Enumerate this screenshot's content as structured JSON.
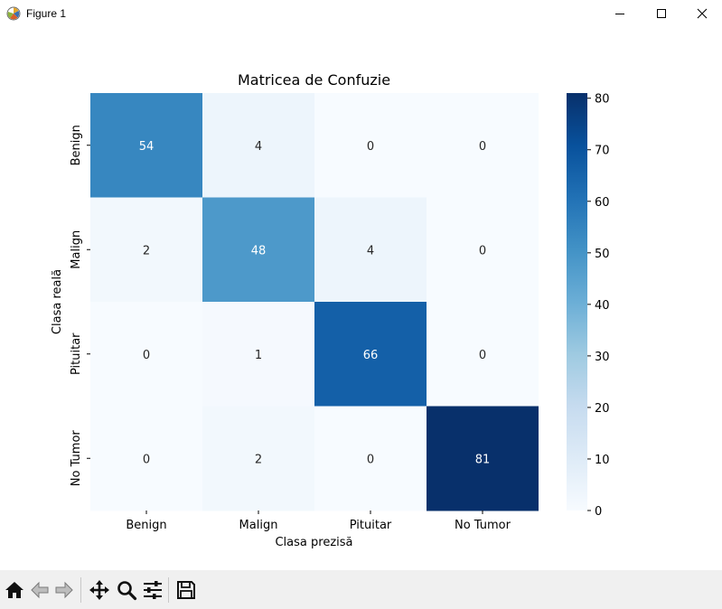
{
  "window": {
    "title": "Figure 1",
    "app_icon": "matplotlib-logo-icon",
    "controls": [
      "minimize-icon",
      "maximize-icon",
      "close-icon"
    ]
  },
  "toolbar": {
    "tools": [
      "home-icon",
      "back-arrow-icon",
      "forward-arrow-icon",
      "pan-move-icon",
      "zoom-magnifier-icon",
      "configure-subplots-icon",
      "save-floppy-icon"
    ]
  },
  "chart_data": {
    "type": "heatmap",
    "title": "Matricea de Confuzie",
    "xlabel": "Clasa prezisă",
    "ylabel": "Clasa reală",
    "x_categories": [
      "Benign",
      "Malign",
      "Pituitar",
      "No Tumor"
    ],
    "y_categories": [
      "Benign",
      "Malign",
      "Pituitar",
      "No Tumor"
    ],
    "values": [
      [
        54,
        4,
        0,
        0
      ],
      [
        2,
        48,
        4,
        0
      ],
      [
        0,
        1,
        66,
        0
      ],
      [
        0,
        2,
        0,
        81
      ]
    ],
    "colormap": "Blues",
    "colorbar": {
      "range": [
        0,
        81
      ],
      "ticks": [
        0,
        10,
        20,
        30,
        40,
        50,
        60,
        70,
        80
      ]
    }
  }
}
